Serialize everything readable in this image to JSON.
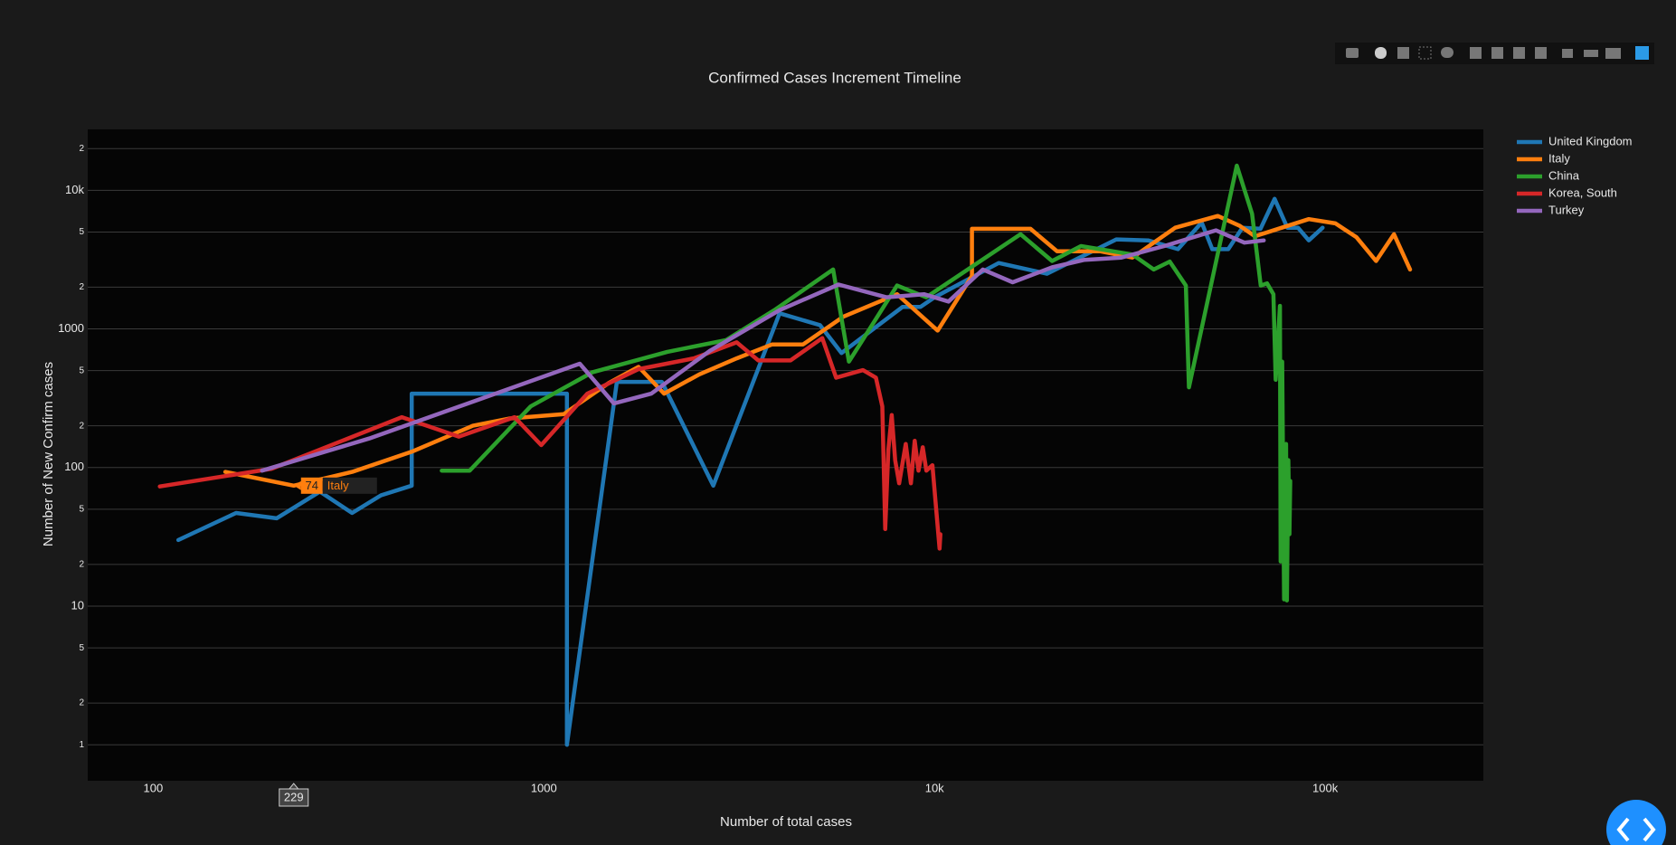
{
  "chart_data": {
    "type": "line",
    "title": "Confirmed Cases Increment Timeline",
    "x_label": "Number of total cases",
    "y_label": "Number of New Confirm cases",
    "log_x": true,
    "log_y": true,
    "grid": true,
    "legend": "right",
    "xlim": [
      68,
      254000
    ],
    "ylim": [
      0.55,
      27500
    ],
    "xticks": [
      100,
      1000,
      {
        "value": 10000,
        "label": "10k"
      },
      {
        "value": 100000,
        "label": "100k"
      }
    ],
    "yticks": [
      1,
      {
        "value": 2,
        "label": "2"
      },
      {
        "value": 5,
        "label": "5"
      },
      10,
      {
        "value": 20,
        "label": "2"
      },
      {
        "value": 50,
        "label": "5"
      },
      100,
      {
        "value": 200,
        "label": "2"
      },
      {
        "value": 500,
        "label": "5"
      },
      1000,
      {
        "value": 2000,
        "label": "2"
      },
      {
        "value": 5000,
        "label": "5"
      },
      {
        "value": 10000,
        "label": "10k"
      },
      {
        "value": 20000,
        "label": "2"
      }
    ],
    "hover": {
      "x": 229,
      "y": 74,
      "series": "Italy"
    },
    "series": [
      {
        "name": "United Kingdom",
        "color": "#1f77b4",
        "x": [
          116,
          163,
          207,
          267,
          323,
          383,
          459,
          459,
          1146,
          1146,
          1538,
          2005,
          2714,
          4013,
          5093,
          5780,
          8280,
          9200,
          10000,
          14600,
          19400,
          29200,
          35200,
          42000,
          48300,
          51400,
          56500,
          61400,
          68300,
          74200,
          80000,
          85200,
          90800,
          98500
        ],
        "values": [
          30,
          47,
          43,
          67,
          47,
          63,
          74,
          341,
          341,
          1,
          415,
          415,
          74,
          1295,
          1065,
          670,
          1440,
          1440,
          1690,
          2990,
          2500,
          4420,
          4350,
          3760,
          5860,
          3760,
          3760,
          5370,
          5270,
          8670,
          5370,
          5370,
          4350,
          5370
        ]
      },
      {
        "name": "Italy",
        "color": "#ff7f0e",
        "x": [
          153,
          229,
          323,
          459,
          658,
          820,
          1125,
          1466,
          1748,
          2031,
          2500,
          3117,
          3840,
          4610,
          5850,
          8020,
          10190,
          12470,
          12470,
          17600,
          20600,
          26600,
          32100,
          41300,
          53100,
          60300,
          66100,
          77400,
          90800,
          106200,
          120300,
          135000,
          150000,
          164900
        ],
        "values": [
          93,
          74,
          93,
          130,
          200,
          226,
          243,
          407,
          532,
          341,
          470,
          613,
          773,
          773,
          1227,
          1780,
          973,
          2410,
          5270,
          5270,
          3630,
          3630,
          3270,
          5370,
          6530,
          5560,
          4660,
          5370,
          6190,
          5770,
          4580,
          3090,
          4820,
          2680
        ]
      },
      {
        "name": "China",
        "color": "#2ca02c",
        "x": [
          548,
          646,
          925,
          1332,
          2070,
          2925,
          3890,
          5500,
          6040,
          8020,
          9520,
          16600,
          20000,
          23700,
          32100,
          36400,
          40000,
          44000,
          44800,
          59400,
          65000,
          68400,
          71000,
          73700,
          74700,
          76600,
          76900,
          77600,
          78500,
          79400,
          79800,
          80500,
          81000,
          81400
        ],
        "values": [
          95,
          95,
          276,
          487,
          683,
          829,
          1365,
          2680,
          581,
          2055,
          1690,
          4820,
          3090,
          3960,
          3440,
          2680,
          3060,
          2055,
          379,
          15050,
          6770,
          2055,
          2130,
          1780,
          430,
          1465,
          21,
          581,
          11.2,
          148,
          11,
          113,
          33,
          80
        ]
      },
      {
        "name": "Korea, South",
        "color": "#d62728",
        "x": [
          104,
          201,
          433,
          606,
          841,
          985,
          1292,
          1748,
          2420,
          3117,
          3540,
          4280,
          5160,
          5600,
          6560,
          7080,
          7350,
          7480,
          7620,
          7770,
          7930,
          8120,
          8440,
          8700,
          8900,
          9100,
          9330,
          9530,
          9880,
          10120,
          10300,
          10350
        ],
        "values": [
          73,
          98,
          231,
          167,
          231,
          145,
          341,
          513,
          613,
          800,
          592,
          592,
          859,
          445,
          504,
          445,
          276,
          36,
          135,
          239,
          113,
          77,
          148,
          77,
          156,
          95,
          140,
          95,
          104,
          47,
          26,
          33
        ]
      },
      {
        "name": "Turkey",
        "color": "#9467bd",
        "x": [
          190,
          357,
          1236,
          1511,
          1884,
          2660,
          4013,
          5680,
          7530,
          9400,
          10860,
          13300,
          15850,
          20000,
          24200,
          30100,
          38700,
          52500,
          62100,
          69600
        ],
        "values": [
          95,
          162,
          561,
          290,
          341,
          695,
          1365,
          2090,
          1690,
          1780,
          1575,
          2680,
          2170,
          2780,
          3150,
          3270,
          3960,
          5140,
          4190,
          4350
        ]
      }
    ]
  }
}
